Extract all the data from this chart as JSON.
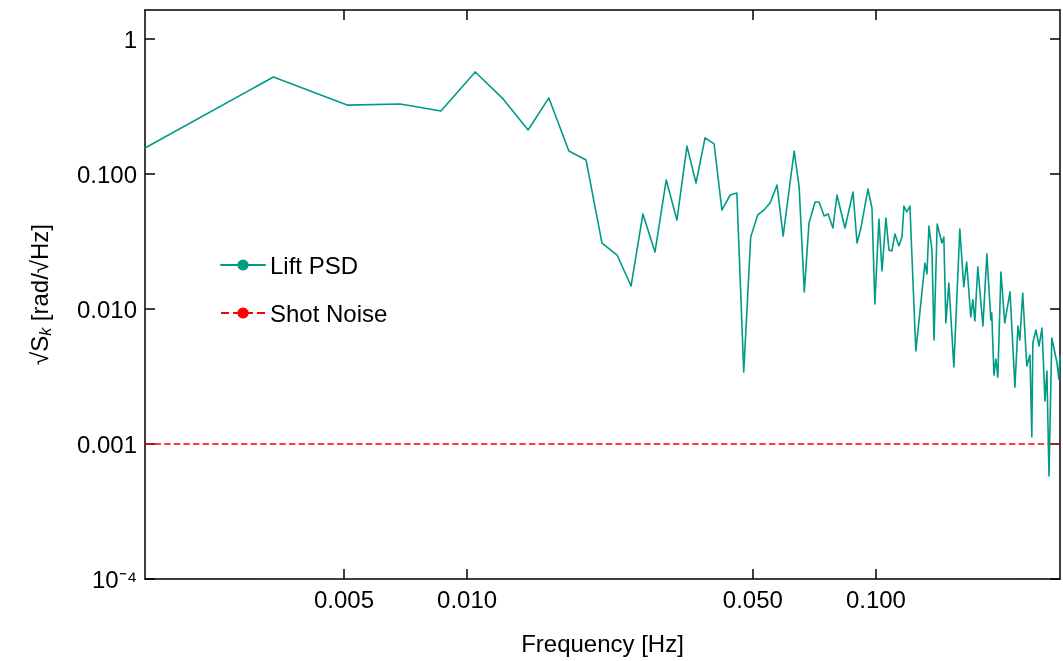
{
  "chart_data": {
    "type": "line",
    "xlabel": "Frequency [Hz]",
    "ylabel": "√S$_{k}$ [rad/√Hz]",
    "log": "xy",
    "grid": false,
    "legend": "left",
    "marker": "none",
    "line_style": "solid",
    "xlim": [
      0.00163,
      0.282
    ],
    "ylim": [
      0.0001,
      1.64
    ],
    "xticks": [
      {
        "value": 0.005,
        "label": "0.005"
      },
      {
        "value": 0.01,
        "label": "0.010"
      },
      {
        "value": 0.05,
        "label": "0.050"
      },
      {
        "value": 0.1,
        "label": "0.100"
      }
    ],
    "yticks": [
      {
        "value": 0.0001,
        "label": "10⁻⁴"
      },
      {
        "value": 0.001,
        "label": "0.001"
      },
      {
        "value": 0.01,
        "label": "0.010"
      },
      {
        "value": 0.1,
        "label": "0.100"
      },
      1
    ],
    "series": [
      {
        "name": "Lift PSD",
        "color": "#009b87",
        "x": [
          0.00163,
          0.00336,
          0.00509,
          0.00686,
          0.00863,
          0.01047,
          0.01225,
          0.0141,
          0.01585,
          0.01774,
          0.01954,
          0.02138,
          0.02328,
          0.02518,
          0.02692,
          0.02881,
          0.0307,
          0.0326,
          0.0345,
          0.0363,
          0.0382,
          0.0402,
          0.042,
          0.044,
          0.0457,
          0.0475,
          0.0494,
          0.0514,
          0.0532,
          0.0551,
          0.0573,
          0.0593,
          0.0631,
          0.0649,
          0.0668,
          0.0686,
          0.071,
          0.0726,
          0.0747,
          0.0764,
          0.0785,
          0.0803,
          0.084,
          0.0879,
          0.0899,
          0.0919,
          0.0956,
          0.0978,
          0.0994,
          0.1017,
          0.1035,
          0.1058,
          0.1076,
          0.1094,
          0.1113,
          0.1138,
          0.1158,
          0.1171,
          0.119,
          0.1211,
          0.1252,
          0.1288,
          0.1318,
          0.1333,
          0.1348,
          0.1371,
          0.1387,
          0.1412,
          0.145,
          0.1466,
          0.1483,
          0.1508,
          0.1551,
          0.1604,
          0.164,
          0.1667,
          0.1706,
          0.1726,
          0.1746,
          0.1775,
          0.1827,
          0.1868,
          0.191,
          0.192,
          0.1944,
          0.1965,
          0.1987,
          0.2022,
          0.2066,
          0.2128,
          0.2188,
          0.2225,
          0.2249,
          0.2286,
          0.2339,
          0.2381,
          0.2406,
          0.242,
          0.2462,
          0.2506,
          0.2548,
          0.2591,
          0.262,
          0.265,
          0.2693,
          0.2773,
          0.2801,
          0.282
        ],
        "values": [
          0.156,
          0.523,
          0.324,
          0.33,
          0.293,
          0.57,
          0.36,
          0.212,
          0.366,
          0.148,
          0.127,
          0.0308,
          0.0251,
          0.0148,
          0.0506,
          0.0264,
          0.0903,
          0.0456,
          0.161,
          0.0858,
          0.185,
          0.167,
          0.0541,
          0.0699,
          0.0723,
          0.00341,
          0.0341,
          0.0497,
          0.0541,
          0.061,
          0.0829,
          0.0347,
          0.148,
          0.0801,
          0.0134,
          0.0434,
          0.0621,
          0.0621,
          0.0489,
          0.0506,
          0.0398,
          0.0699,
          0.0398,
          0.0736,
          0.0308,
          0.0398,
          0.0774,
          0.056,
          0.0109,
          0.0464,
          0.0191,
          0.0472,
          0.0274,
          0.0269,
          0.0359,
          0.0293,
          0.0341,
          0.0579,
          0.0523,
          0.0579,
          0.00489,
          0.0111,
          0.0219,
          0.0182,
          0.0412,
          0.0274,
          0.00589,
          0.0426,
          0.0308,
          0.0341,
          0.00788,
          0.0156,
          0.00372,
          0.0391,
          0.0146,
          0.0223,
          0.00873,
          0.0117,
          0.00815,
          0.0205,
          0.00748,
          0.0255,
          0.00829,
          0.00934,
          0.00324,
          0.00426,
          0.00313,
          0.0188,
          0.00788,
          0.0134,
          0.00264,
          0.00748,
          0.00589,
          0.0131,
          0.00378,
          0.00456,
          0.00113,
          0.0056,
          0.00699,
          0.00532,
          0.00723,
          0.00208,
          0.00347,
          0.00058,
          0.0061,
          0.00398,
          0.00303,
          0.0045
        ]
      }
    ],
    "ref_lines": [
      {
        "axis": "y",
        "value": 0.001,
        "label": "Shot Noise",
        "color": "#ff0000",
        "line_style": "dashed"
      }
    ]
  }
}
